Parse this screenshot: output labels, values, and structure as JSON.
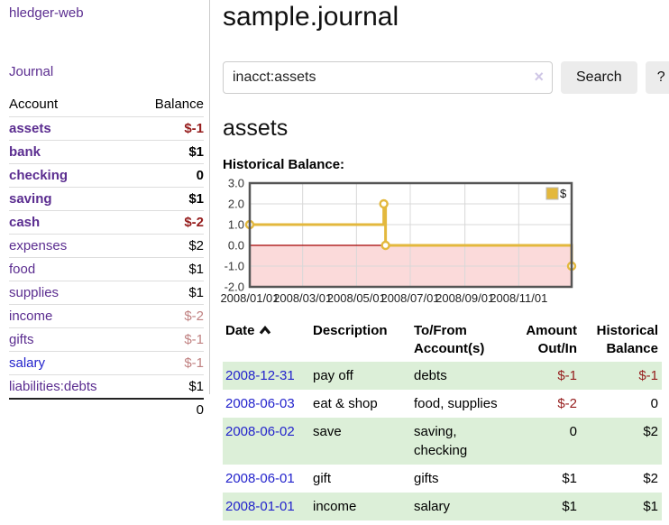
{
  "colors": {
    "purple": "#5b2d90",
    "linkblue": "#2323cc",
    "neg": "#951c1c",
    "negsoft": "#c08181",
    "rowgreen": "#dcefd8",
    "rowline": "#dddddd",
    "divider": "#cccccc",
    "btnbg": "#ececec",
    "gold": "#e3b83d",
    "pink": "#fbdada",
    "zero_line": "#a40000",
    "grid": "#d8d8d8",
    "frame": "#555555"
  },
  "sidebar": {
    "brand": "hledger-web",
    "journal_link": "Journal",
    "accounts": {
      "header": {
        "account": "Account",
        "balance": "Balance"
      },
      "rows": [
        {
          "name": "assets",
          "balance": "$-1",
          "level": 0,
          "bold": true,
          "tone": "neg"
        },
        {
          "name": "bank",
          "balance": "$1",
          "level": 1,
          "bold": true
        },
        {
          "name": "checking",
          "balance": "0",
          "level": 2,
          "bold": true
        },
        {
          "name": "saving",
          "balance": "$1",
          "level": 2,
          "bold": true
        },
        {
          "name": "cash",
          "balance": "$-2",
          "level": 1,
          "bold": true,
          "tone": "neg"
        },
        {
          "name": "expenses",
          "balance": "$2",
          "level": 0
        },
        {
          "name": "food",
          "balance": "$1",
          "level": 1
        },
        {
          "name": "supplies",
          "balance": "$1",
          "level": 1
        },
        {
          "name": "income",
          "balance": "$-2",
          "level": 0,
          "tone": "soft"
        },
        {
          "name": "gifts",
          "balance": "$-1",
          "level": 1,
          "tone": "soft"
        },
        {
          "name": "salary",
          "balance": "$-1",
          "level": 1,
          "tone": "soft",
          "blue": true
        },
        {
          "name": "liabilities:debts",
          "balance": "$1",
          "level": 0
        }
      ],
      "total": "0"
    }
  },
  "main": {
    "title": "sample.journal",
    "search": {
      "value": "inacct:assets",
      "clear_glyph": "×",
      "button_label": "Search",
      "help_label": "?"
    },
    "account_heading": "assets",
    "chart_label": "Historical Balance:"
  },
  "chart_data": {
    "type": "line",
    "title": "Historical Balance",
    "step": true,
    "legend": "$",
    "legend_position": "top-right",
    "grid": true,
    "x_range": [
      "2008-01-01",
      "2008-12-31"
    ],
    "ylim": [
      -2,
      3
    ],
    "y_ticks": [
      3,
      2,
      1,
      0,
      -1,
      -2
    ],
    "x_ticks": [
      "2008/01/01",
      "2008/03/01",
      "2008/05/01",
      "2008/07/01",
      "2008/09/01",
      "2008/11/01"
    ],
    "series": [
      {
        "name": "$",
        "points": [
          [
            "2008-01-01",
            1
          ],
          [
            "2008-06-01",
            2
          ],
          [
            "2008-06-03",
            0
          ],
          [
            "2008-12-31",
            -1
          ]
        ]
      }
    ],
    "negative_region_shaded": true
  },
  "register": {
    "sort_icon": "chevron-up",
    "headers": [
      {
        "label": "Date",
        "align": "left",
        "sort": true
      },
      {
        "label": "Description",
        "align": "left"
      },
      {
        "label": "To/From\nAccount(s)",
        "align": "left"
      },
      {
        "label": "Amount\nOut/In",
        "align": "right"
      },
      {
        "label": "Historical\nBalance",
        "align": "right"
      }
    ],
    "rows": [
      {
        "date": "2008-12-31",
        "description": "pay off",
        "accounts": "debts",
        "amount": "$-1",
        "balance": "$-1"
      },
      {
        "date": "2008-06-03",
        "description": "eat & shop",
        "accounts": "food, supplies",
        "amount": "$-2",
        "balance": "0"
      },
      {
        "date": "2008-06-02",
        "description": "save",
        "accounts": "saving, checking",
        "amount": "0",
        "balance": "$2"
      },
      {
        "date": "2008-06-01",
        "description": "gift",
        "accounts": "gifts",
        "amount": "$1",
        "balance": "$2"
      },
      {
        "date": "2008-01-01",
        "description": "income",
        "accounts": "salary",
        "amount": "$1",
        "balance": "$1"
      }
    ]
  }
}
